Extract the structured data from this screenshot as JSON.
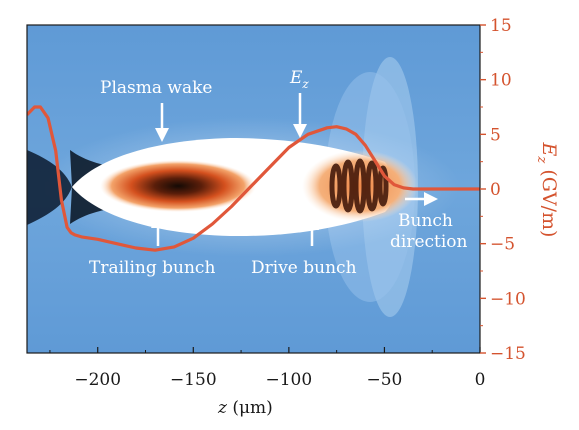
{
  "annotations": {
    "plasma_wake": "Plasma wake",
    "ez": "E",
    "ez_sub": "z",
    "trailing_bunch": "Trailing bunch",
    "drive_bunch": "Drive bunch",
    "bunch_direction_1": "Bunch",
    "bunch_direction_2": "direction"
  },
  "axes": {
    "x_label_var": "z",
    "x_label_unit": " (μm)",
    "y_right_label_var": "E",
    "y_right_label_sub": "z",
    "y_right_label_unit": " (GV/m)",
    "x_ticks": [
      "−200",
      "−150",
      "−100",
      "−50",
      "0"
    ],
    "y_ticks": [
      "15",
      "10",
      "5",
      "0",
      "−5",
      "−10",
      "−15"
    ]
  },
  "colors": {
    "background_field": "#6aa2d8",
    "curve": "#e0573a",
    "axis_right": "#d4532e",
    "annotation": "#ffffff"
  },
  "chart_data": {
    "type": "line",
    "x_range": [
      -237,
      0
    ],
    "y_range": [
      -15,
      15
    ],
    "series": [
      {
        "x": [
          -237,
          -233,
          -230,
          -226,
          -222,
          -219,
          -216,
          -214,
          -212,
          -208,
          -200,
          -190,
          -180,
          -170,
          -160,
          -150,
          -140,
          -130,
          -120,
          -110,
          -100,
          -90,
          -80,
          -75,
          -70,
          -65,
          -60,
          -55,
          -50,
          -45,
          -40,
          -35,
          -30,
          -20,
          -10,
          0
        ],
        "y": [
          6.8,
          7.5,
          7.5,
          6.5,
          3.5,
          -1.0,
          -3.5,
          -4.0,
          -4.2,
          -4.4,
          -4.6,
          -5.0,
          -5.4,
          -5.6,
          -5.3,
          -4.5,
          -3.2,
          -1.6,
          0.2,
          2.0,
          3.8,
          5.0,
          5.6,
          5.7,
          5.5,
          5.0,
          4.0,
          2.6,
          1.2,
          0.4,
          0.1,
          0.0,
          0.0,
          0.0,
          0.0,
          0.0
        ]
      }
    ]
  }
}
